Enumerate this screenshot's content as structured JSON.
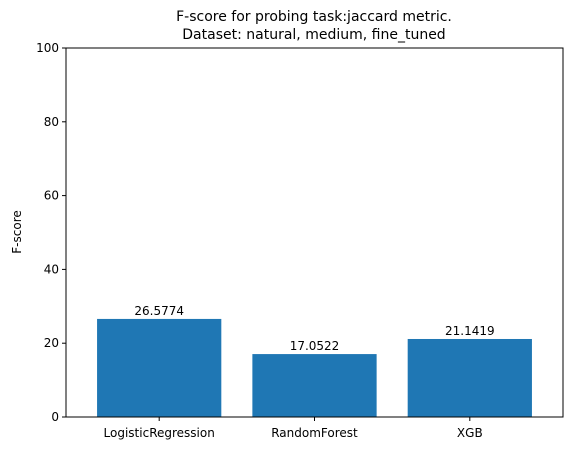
{
  "chart_data": {
    "type": "bar",
    "title": "F-score for probing task:jaccard metric.",
    "subtitle": "Dataset: natural, medium, fine_tuned",
    "xlabel": "",
    "ylabel": "F-score",
    "categories": [
      "LogisticRegression",
      "RandomForest",
      "XGB"
    ],
    "values": [
      26.5774,
      17.0522,
      21.1419
    ],
    "data_labels": [
      "26.5774",
      "17.0522",
      "21.1419"
    ],
    "ylim": [
      0,
      100
    ],
    "yticks": [
      0,
      20,
      40,
      60,
      80,
      100
    ],
    "grid": false,
    "legend": "none",
    "bar_color": "#1f77b4"
  }
}
